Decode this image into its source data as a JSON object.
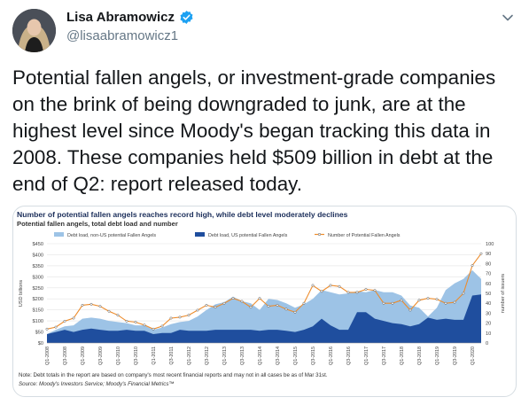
{
  "tweet": {
    "display_name": "Lisa Abramowicz",
    "handle": "@lisaabramowicz1",
    "text": "Potential fallen angels, or investment-grade companies\non the brink of being downgraded to junk, are at the\nhighest level since Moody's began tracking this data in\n2008. These companies held $509 billion in debt at the\nend of Q2: report released today.",
    "icons": {
      "verified": "verified-badge-icon",
      "menu": "chevron-down-icon"
    },
    "colors": {
      "verified": "#1da1f2",
      "handle": "#657786"
    }
  },
  "chart_data": {
    "type": "area",
    "title": "Number of potential fallen angels reaches record high, while debt level moderately declines",
    "subtitle": "Potential fallen angels, total debt load and number",
    "ylabel": "USD billions",
    "y2label": "number of issuers",
    "ylim": [
      0,
      450
    ],
    "y2lim": [
      0,
      100
    ],
    "yticks": [
      "$0",
      "$50",
      "$100",
      "$150",
      "$200",
      "$250",
      "$300",
      "$350",
      "$400",
      "$450"
    ],
    "y2ticks": [
      "0",
      "10",
      "20",
      "30",
      "40",
      "50",
      "60",
      "70",
      "80",
      "90",
      "100"
    ],
    "grid": true,
    "legend_position": "top",
    "categories": [
      "Q1-2008",
      "Q2-2008",
      "Q3-2008",
      "Q4-2008",
      "Q1-2009",
      "Q2-2009",
      "Q3-2009",
      "Q4-2009",
      "Q1-2010",
      "Q2-2010",
      "Q3-2010",
      "Q4-2010",
      "Q1-2011",
      "Q2-2011",
      "Q3-2011",
      "Q4-2011",
      "Q1-2012",
      "Q2-2012",
      "Q3-2012",
      "Q4-2012",
      "Q1-2013",
      "Q2-2013",
      "Q3-2013",
      "Q4-2013",
      "Q1-2014",
      "Q2-2014",
      "Q3-2014",
      "Q4-2014",
      "Q1-2015",
      "Q2-2015",
      "Q3-2015",
      "Q4-2015",
      "Q1-2016",
      "Q2-2016",
      "Q3-2016",
      "Q4-2016",
      "Q1-2017",
      "Q2-2017",
      "Q3-2017",
      "Q4-2017",
      "Q1-2018",
      "Q2-2018",
      "Q3-2018",
      "Q4-2018",
      "Q1-2019",
      "Q2-2019",
      "Q3-2019",
      "Q4-2019",
      "Q1-2020",
      "Q2-2020"
    ],
    "tick_labels": [
      "Q1-2008",
      "Q3-2008",
      "Q1-2009",
      "Q3-2009",
      "Q1-2010",
      "Q3-2010",
      "Q1-2011",
      "Q3-2011",
      "Q1-2012",
      "Q3-2012",
      "Q1-2013",
      "Q3-2013",
      "Q1-2014",
      "Q3-2014",
      "Q1-2015",
      "Q3-2015",
      "Q1-2016",
      "Q3-2016",
      "Q1-2017",
      "Q3-2017",
      "Q1-2018",
      "Q3-2018",
      "Q1-2019",
      "Q3-2019",
      "Q1-2020"
    ],
    "series": [
      {
        "name": "Debt load, non-US potential Fallen Angels",
        "color": "#9dc3e6",
        "values": [
          40,
          60,
          75,
          80,
          110,
          115,
          110,
          100,
          95,
          90,
          80,
          80,
          60,
          70,
          85,
          95,
          100,
          120,
          150,
          175,
          185,
          210,
          190,
          180,
          150,
          200,
          195,
          180,
          160,
          175,
          200,
          240,
          230,
          220,
          225,
          235,
          230,
          240,
          230,
          230,
          215,
          170,
          160,
          120,
          160,
          240,
          270,
          290,
          330,
          290
        ]
      },
      {
        "name": "Debt load, US potential Fallen Angels",
        "color": "#1f4e9e",
        "values": [
          40,
          50,
          60,
          50,
          60,
          65,
          60,
          55,
          55,
          60,
          55,
          55,
          40,
          45,
          45,
          60,
          55,
          55,
          55,
          60,
          60,
          60,
          60,
          60,
          55,
          60,
          60,
          55,
          50,
          60,
          75,
          110,
          80,
          60,
          60,
          140,
          140,
          110,
          100,
          90,
          85,
          75,
          85,
          115,
          105,
          110,
          105,
          105,
          215,
          220
        ]
      },
      {
        "name": "Number of Potential Fallen Angels",
        "color": "#ed8c2c",
        "values": [
          14,
          16,
          22,
          25,
          38,
          39,
          37,
          32,
          28,
          22,
          21,
          18,
          14,
          17,
          25,
          26,
          28,
          33,
          38,
          36,
          40,
          45,
          42,
          36,
          45,
          37,
          38,
          34,
          31,
          40,
          58,
          52,
          58,
          57,
          51,
          51,
          54,
          53,
          40,
          40,
          43,
          33,
          43,
          45,
          44,
          40,
          41,
          50,
          78,
          90
        ]
      }
    ]
  },
  "chart_note": "Note: Debt totals in the report are based on company's most recent financial reports and may not in all cases be as of Mar 31st.",
  "chart_source": "Source: Moody's Investors Service; Moody's Financial Metrics™"
}
